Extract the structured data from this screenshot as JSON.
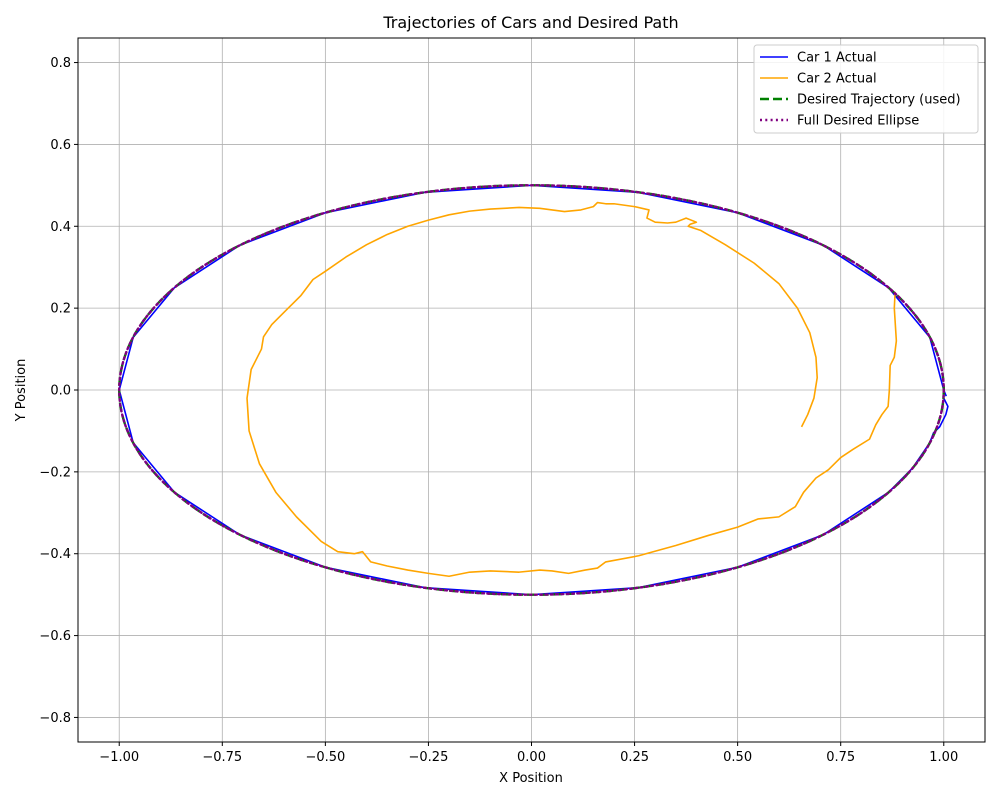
{
  "chart_data": {
    "type": "line",
    "title": "Trajectories of Cars and Desired Path",
    "xlabel": "X Position",
    "ylabel": "Y Position",
    "xlim": [
      -1.1,
      1.1
    ],
    "ylim": [
      -0.86,
      0.86
    ],
    "xticks": [
      -1.0,
      -0.75,
      -0.5,
      -0.25,
      0.0,
      0.25,
      0.5,
      0.75,
      1.0
    ],
    "xtick_labels": [
      "−1.00",
      "−0.75",
      "−0.50",
      "−0.25",
      "0.00",
      "0.25",
      "0.50",
      "0.75",
      "1.00"
    ],
    "yticks": [
      -0.8,
      -0.6,
      -0.4,
      -0.2,
      0.0,
      0.2,
      0.4,
      0.6,
      0.8
    ],
    "ytick_labels": [
      "−0.8",
      "−0.6",
      "−0.4",
      "−0.2",
      "0.0",
      "0.2",
      "0.4",
      "0.6",
      "0.8"
    ],
    "grid": true,
    "legend_position": "upper-right",
    "series": [
      {
        "name": "Car 1 Actual",
        "color": "#0000ff",
        "style": "solid",
        "points": [
          [
            1.0,
            -0.02
          ],
          [
            1.01,
            -0.04
          ],
          [
            1.005,
            -0.06
          ],
          [
            0.99,
            -0.09
          ],
          [
            0.975,
            -0.105
          ],
          [
            0.966,
            -0.129
          ],
          [
            0.924,
            -0.191
          ],
          [
            0.866,
            -0.25
          ],
          [
            0.707,
            -0.354
          ],
          [
            0.5,
            -0.433
          ],
          [
            0.259,
            -0.483
          ],
          [
            0.0,
            -0.5
          ],
          [
            -0.259,
            -0.483
          ],
          [
            -0.5,
            -0.433
          ],
          [
            -0.707,
            -0.354
          ],
          [
            -0.866,
            -0.25
          ],
          [
            -0.966,
            -0.129
          ],
          [
            -1.0,
            0.0
          ],
          [
            -0.966,
            0.129
          ],
          [
            -0.866,
            0.25
          ],
          [
            -0.707,
            0.354
          ],
          [
            -0.5,
            0.433
          ],
          [
            -0.259,
            0.483
          ],
          [
            0.0,
            0.5
          ],
          [
            0.259,
            0.483
          ],
          [
            0.5,
            0.433
          ],
          [
            0.707,
            0.354
          ],
          [
            0.866,
            0.25
          ],
          [
            0.966,
            0.129
          ],
          [
            1.0,
            0.0
          ],
          [
            1.006,
            -0.015
          ]
        ]
      },
      {
        "name": "Car 2 Actual",
        "color": "#ffa500",
        "style": "solid",
        "points": [
          [
            0.655,
            -0.09
          ],
          [
            0.67,
            -0.06
          ],
          [
            0.685,
            -0.02
          ],
          [
            0.693,
            0.03
          ],
          [
            0.69,
            0.08
          ],
          [
            0.675,
            0.14
          ],
          [
            0.645,
            0.2
          ],
          [
            0.6,
            0.26
          ],
          [
            0.54,
            0.31
          ],
          [
            0.47,
            0.355
          ],
          [
            0.41,
            0.39
          ],
          [
            0.38,
            0.4
          ],
          [
            0.385,
            0.405
          ],
          [
            0.4,
            0.41
          ],
          [
            0.375,
            0.42
          ],
          [
            0.35,
            0.41
          ],
          [
            0.33,
            0.408
          ],
          [
            0.3,
            0.41
          ],
          [
            0.28,
            0.42
          ],
          [
            0.285,
            0.44
          ],
          [
            0.25,
            0.448
          ],
          [
            0.2,
            0.455
          ],
          [
            0.18,
            0.455
          ],
          [
            0.16,
            0.458
          ],
          [
            0.15,
            0.448
          ],
          [
            0.12,
            0.44
          ],
          [
            0.08,
            0.436
          ],
          [
            0.05,
            0.44
          ],
          [
            0.02,
            0.444
          ],
          [
            -0.03,
            0.446
          ],
          [
            -0.1,
            0.442
          ],
          [
            -0.15,
            0.437
          ],
          [
            -0.2,
            0.428
          ],
          [
            -0.25,
            0.415
          ],
          [
            -0.3,
            0.4
          ],
          [
            -0.35,
            0.38
          ],
          [
            -0.4,
            0.355
          ],
          [
            -0.45,
            0.325
          ],
          [
            -0.5,
            0.29
          ],
          [
            -0.53,
            0.27
          ],
          [
            -0.56,
            0.23
          ],
          [
            -0.6,
            0.19
          ],
          [
            -0.63,
            0.16
          ],
          [
            -0.65,
            0.13
          ],
          [
            -0.655,
            0.1
          ],
          [
            -0.68,
            0.05
          ],
          [
            -0.69,
            -0.02
          ],
          [
            -0.685,
            -0.1
          ],
          [
            -0.66,
            -0.18
          ],
          [
            -0.62,
            -0.25
          ],
          [
            -0.57,
            -0.31
          ],
          [
            -0.51,
            -0.37
          ],
          [
            -0.47,
            -0.395
          ],
          [
            -0.43,
            -0.4
          ],
          [
            -0.41,
            -0.395
          ],
          [
            -0.39,
            -0.42
          ],
          [
            -0.35,
            -0.43
          ],
          [
            -0.3,
            -0.44
          ],
          [
            -0.25,
            -0.448
          ],
          [
            -0.2,
            -0.455
          ],
          [
            -0.15,
            -0.445
          ],
          [
            -0.1,
            -0.442
          ],
          [
            -0.03,
            -0.445
          ],
          [
            0.02,
            -0.44
          ],
          [
            0.05,
            -0.442
          ],
          [
            0.09,
            -0.448
          ],
          [
            0.13,
            -0.44
          ],
          [
            0.16,
            -0.435
          ],
          [
            0.18,
            -0.42
          ],
          [
            0.26,
            -0.405
          ],
          [
            0.35,
            -0.38
          ],
          [
            0.43,
            -0.355
          ],
          [
            0.5,
            -0.335
          ],
          [
            0.55,
            -0.315
          ],
          [
            0.6,
            -0.31
          ],
          [
            0.64,
            -0.285
          ],
          [
            0.66,
            -0.25
          ],
          [
            0.69,
            -0.215
          ],
          [
            0.72,
            -0.195
          ],
          [
            0.75,
            -0.165
          ],
          [
            0.78,
            -0.145
          ],
          [
            0.82,
            -0.12
          ],
          [
            0.835,
            -0.085
          ],
          [
            0.85,
            -0.06
          ],
          [
            0.865,
            -0.04
          ],
          [
            0.868,
            0.0
          ],
          [
            0.87,
            0.06
          ],
          [
            0.88,
            0.08
          ],
          [
            0.885,
            0.12
          ],
          [
            0.88,
            0.2
          ],
          [
            0.882,
            0.24
          ]
        ]
      },
      {
        "name": "Desired Trajectory (used)",
        "color": "#008000",
        "style": "dashed",
        "points": [
          [
            1.0,
            0.0
          ],
          [
            0.966,
            -0.129
          ],
          [
            0.866,
            -0.25
          ],
          [
            0.707,
            -0.354
          ],
          [
            0.5,
            -0.433
          ],
          [
            0.259,
            -0.483
          ],
          [
            0.0,
            -0.5
          ],
          [
            -0.259,
            -0.483
          ],
          [
            -0.5,
            -0.433
          ],
          [
            -0.707,
            -0.354
          ],
          [
            -0.866,
            -0.25
          ],
          [
            -0.966,
            -0.129
          ],
          [
            -1.0,
            0.0
          ],
          [
            -0.966,
            0.129
          ],
          [
            -0.866,
            0.25
          ],
          [
            -0.707,
            0.354
          ],
          [
            -0.5,
            0.433
          ],
          [
            -0.259,
            0.483
          ],
          [
            0.0,
            0.5
          ],
          [
            0.259,
            0.483
          ],
          [
            0.5,
            0.433
          ],
          [
            0.707,
            0.354
          ],
          [
            0.866,
            0.25
          ],
          [
            0.966,
            0.129
          ],
          [
            1.0,
            0.0
          ]
        ]
      },
      {
        "name": "Full Desired Ellipse",
        "color": "#800080",
        "style": "dotted",
        "points": [
          [
            1.0,
            0.0
          ],
          [
            0.966,
            0.129
          ],
          [
            0.866,
            0.25
          ],
          [
            0.707,
            0.354
          ],
          [
            0.5,
            0.433
          ],
          [
            0.259,
            0.483
          ],
          [
            0.0,
            0.5
          ],
          [
            -0.259,
            0.483
          ],
          [
            -0.5,
            0.433
          ],
          [
            -0.707,
            0.354
          ],
          [
            -0.866,
            0.25
          ],
          [
            -0.966,
            0.129
          ],
          [
            -1.0,
            0.0
          ],
          [
            -0.966,
            -0.129
          ],
          [
            -0.866,
            -0.25
          ],
          [
            -0.707,
            -0.354
          ],
          [
            -0.5,
            -0.433
          ],
          [
            -0.259,
            -0.483
          ],
          [
            0.0,
            -0.5
          ],
          [
            0.259,
            -0.483
          ],
          [
            0.5,
            -0.433
          ],
          [
            0.707,
            -0.354
          ],
          [
            0.866,
            -0.25
          ],
          [
            0.966,
            -0.129
          ],
          [
            1.0,
            0.0
          ]
        ]
      }
    ]
  }
}
